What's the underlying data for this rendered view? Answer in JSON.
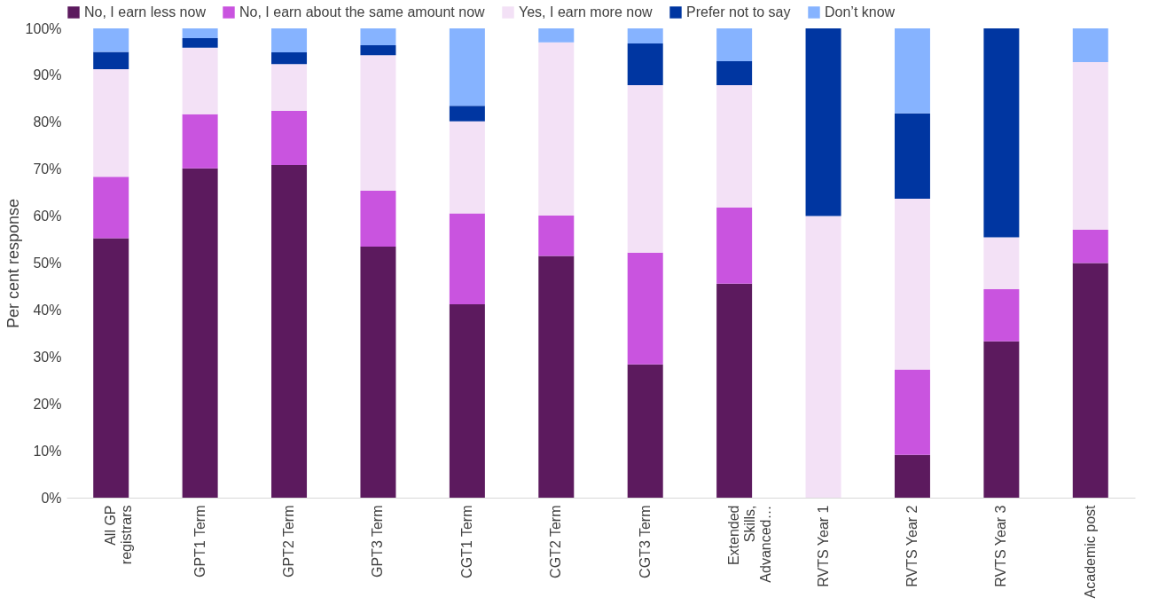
{
  "chart_data": {
    "type": "bar",
    "stacked": true,
    "ylabel": "Per cent response",
    "legend": "top",
    "categories": [
      "All GP registrars",
      "GPT1 Term",
      "GPT2 Term",
      "GPT3 Term",
      "CGT1 Term",
      "CGT2 Term",
      "CGT3 Term",
      "Extended Skills, Advanced…",
      "RVTS Year 1",
      "RVTS Year 2",
      "RVTS Year 3",
      "Academic post"
    ],
    "ylim": [
      0,
      100
    ],
    "yticks": [
      {
        "value": 0,
        "label": "0%"
      },
      {
        "value": 10,
        "label": "10%"
      },
      {
        "value": 20,
        "label": "20%"
      },
      {
        "value": 30,
        "label": "30%"
      },
      {
        "value": 40,
        "label": "40%"
      },
      {
        "value": 50,
        "label": "50%"
      },
      {
        "value": 60,
        "label": "60%"
      },
      {
        "value": 70,
        "label": "70%"
      },
      {
        "value": 80,
        "label": "80%"
      },
      {
        "value": 90,
        "label": "90%"
      },
      {
        "value": 100,
        "label": "100%"
      }
    ],
    "series": [
      {
        "name": "No, I earn less now",
        "color": "#5c1a5e",
        "values": [
          55.3,
          70.2,
          70.9,
          53.5,
          41.2,
          51.5,
          28.4,
          45.6,
          0,
          9.1,
          33.3,
          50.0
        ]
      },
      {
        "name": "No, I earn about the same amount now",
        "color": "#c954df",
        "values": [
          13.1,
          11.5,
          11.5,
          11.9,
          19.4,
          8.6,
          23.8,
          16.2,
          0,
          18.2,
          11.1,
          7.1
        ]
      },
      {
        "name": "Yes, I earn more now",
        "color": "#f3e1f6",
        "values": [
          22.9,
          14.2,
          10.0,
          28.9,
          19.6,
          36.9,
          35.7,
          26.1,
          60,
          36.4,
          11.1,
          35.7
        ]
      },
      {
        "name": "Prefer not to say",
        "color": "#0036a1",
        "values": [
          3.7,
          2.0,
          2.5,
          2.1,
          3.3,
          0,
          8.9,
          5.1,
          40,
          18.2,
          44.5,
          0
        ]
      },
      {
        "name": "Don’t know",
        "color": "#86b3ff",
        "values": [
          5.0,
          2.1,
          5.1,
          3.6,
          16.5,
          3.0,
          3.2,
          7.0,
          0,
          18.1,
          0,
          7.2
        ]
      }
    ]
  }
}
